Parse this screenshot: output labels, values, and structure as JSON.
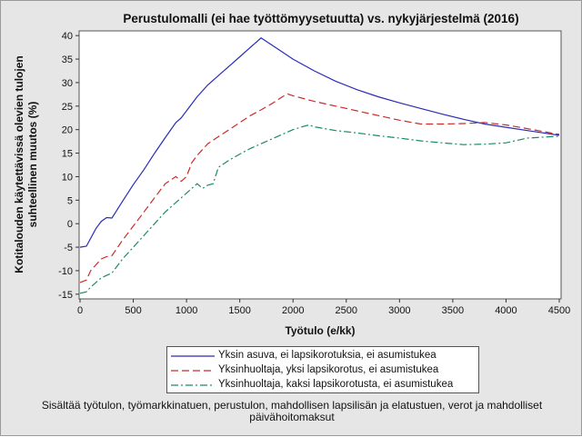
{
  "chart_data": {
    "type": "line",
    "title": "Perustulomalli (ei hae työttömyysetuutta) vs. nykyjärjestelmä (2016)",
    "xlabel": "Työtulo (e/kk)",
    "ylabel_lines": [
      "Kotitalouden käytettävissä olevien tulojen",
      "suhteellinen muutos (%)"
    ],
    "xlim": [
      0,
      4500
    ],
    "ylim": [
      -16,
      41
    ],
    "xticks": [
      0,
      500,
      1000,
      1500,
      2000,
      2500,
      3000,
      3500,
      4000,
      4500
    ],
    "yticks": [
      -15,
      -10,
      -5,
      0,
      5,
      10,
      15,
      20,
      25,
      30,
      35,
      40
    ],
    "grid": false,
    "legend_position": "bottom",
    "series": [
      {
        "name": "Yksin asuva, ei lapsikorotuksia, ei asumistukea",
        "color": "#2b2bb8",
        "dash": "",
        "x": [
          0,
          60,
          150,
          200,
          250,
          300,
          400,
          500,
          600,
          700,
          800,
          900,
          950,
          1000,
          1100,
          1200,
          1300,
          1400,
          1500,
          1600,
          1700,
          1800,
          1900,
          2000,
          2200,
          2400,
          2600,
          2800,
          3000,
          3200,
          3400,
          3600,
          3800,
          4000,
          4200,
          4500
        ],
        "y": [
          -5,
          -4.8,
          -1,
          0.5,
          1.3,
          1.2,
          4.8,
          8.3,
          11.5,
          15,
          18.3,
          21.5,
          22.5,
          24,
          27,
          29.5,
          31.5,
          33.5,
          35.5,
          37.5,
          39.5,
          38,
          36.5,
          35,
          32.5,
          30.3,
          28.5,
          27,
          25.7,
          24.5,
          23.3,
          22.2,
          21.2,
          20.5,
          19.8,
          18.8
        ]
      },
      {
        "name": "Yksinhuoltaja, yksi lapsikorotus, ei asumistukea",
        "color": "#cc2b2b",
        "dash": "8 4",
        "x": [
          0,
          60,
          100,
          200,
          250,
          300,
          400,
          500,
          600,
          700,
          800,
          900,
          950,
          1000,
          1050,
          1100,
          1200,
          1300,
          1400,
          1500,
          1600,
          1700,
          1800,
          1900,
          1950,
          2000,
          2200,
          2400,
          2600,
          2800,
          3000,
          3200,
          3400,
          3600,
          3800,
          4000,
          4200,
          4500
        ],
        "y": [
          -12.5,
          -12,
          -10,
          -7.5,
          -7,
          -6.8,
          -3.5,
          -0.5,
          2.5,
          5.5,
          8.5,
          10,
          9,
          10,
          13,
          14.5,
          17,
          18.5,
          20,
          21.5,
          23,
          24.2,
          25.5,
          27,
          27.6,
          27.2,
          26,
          25,
          24,
          23,
          22,
          21.2,
          21.2,
          21.3,
          21.5,
          21,
          20.2,
          19
        ]
      },
      {
        "name": "Yksinhuoltaja, kaksi lapsikorotusta, ei asumistukea",
        "color": "#1a8a6a",
        "dash": "8 3 2 3",
        "x": [
          0,
          60,
          100,
          200,
          300,
          400,
          500,
          600,
          700,
          800,
          900,
          1000,
          1100,
          1150,
          1200,
          1250,
          1300,
          1400,
          1500,
          1600,
          1700,
          1800,
          1900,
          2000,
          2100,
          2150,
          2200,
          2400,
          2600,
          2800,
          3000,
          3200,
          3400,
          3600,
          3800,
          4000,
          4200,
          4500
        ],
        "y": [
          -14.8,
          -14.5,
          -13.5,
          -11.5,
          -10.5,
          -7.5,
          -5,
          -2.5,
          0,
          2.5,
          4.5,
          6.5,
          8.5,
          7.5,
          8.2,
          8.5,
          12,
          13.5,
          14.8,
          16,
          17,
          18,
          19,
          20,
          20.7,
          21,
          20.6,
          19.8,
          19.3,
          18.7,
          18.2,
          17.6,
          17.2,
          16.8,
          16.9,
          17.2,
          18.2,
          18.6
        ]
      }
    ]
  },
  "footnote_lines": [
    "Sisältää työtulon, työmarkkinatuen, perustulon, mahdollisen lapsilisän ja elatustuen, verot ja mahdolliset",
    "päivähoitomaksut"
  ]
}
